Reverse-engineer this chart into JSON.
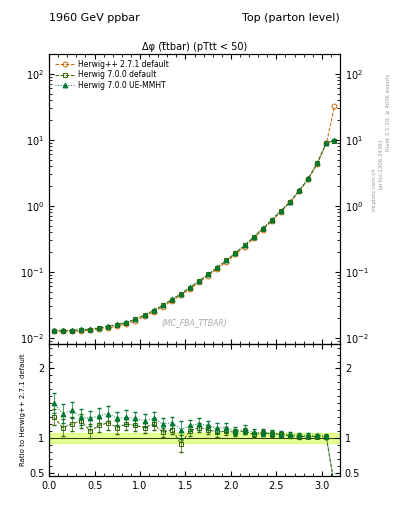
{
  "title_left": "1960 GeV ppbar",
  "title_right": "Top (parton level)",
  "plot_title": "Δφ (t̅tbar) (pTtt < 50)",
  "watermark": "(MC_FBA_TTBAR)",
  "right_label_top": "Rivet 3.1.10; ≥ 400k events",
  "right_label_mid": "[arXiv:1306.3436]",
  "right_label_bot": "mcplots.cern.ch",
  "ylabel_ratio": "Ratio to Herwig++ 2.7.1 default",
  "series": [
    {
      "label": "Herwig++ 2.7.1 default",
      "color": "#cc6600",
      "marker": "o",
      "fillstyle": "none",
      "linestyle": "--"
    },
    {
      "label": "Herwig 7.0.0 default",
      "color": "#336600",
      "marker": "s",
      "fillstyle": "none",
      "linestyle": "--"
    },
    {
      "label": "Herwig 7.0.0 UE-MMHT",
      "color": "#007733",
      "marker": "^",
      "fillstyle": "full",
      "linestyle": ":"
    }
  ],
  "x_values": [
    0.05,
    0.15,
    0.25,
    0.35,
    0.45,
    0.55,
    0.65,
    0.75,
    0.85,
    0.95,
    1.05,
    1.15,
    1.25,
    1.35,
    1.45,
    1.55,
    1.65,
    1.75,
    1.85,
    1.95,
    2.05,
    2.15,
    2.25,
    2.35,
    2.45,
    2.55,
    2.65,
    2.75,
    2.85,
    2.95,
    3.05,
    3.14
  ],
  "y_main_s0": [
    0.0125,
    0.0125,
    0.0125,
    0.0128,
    0.013,
    0.0135,
    0.014,
    0.015,
    0.0162,
    0.018,
    0.021,
    0.0245,
    0.0295,
    0.036,
    0.044,
    0.055,
    0.069,
    0.087,
    0.11,
    0.142,
    0.183,
    0.24,
    0.32,
    0.43,
    0.585,
    0.81,
    1.12,
    1.65,
    2.5,
    4.3,
    8.8,
    32.0
  ],
  "y_main_s1": [
    0.0128,
    0.0128,
    0.0128,
    0.0132,
    0.0133,
    0.014,
    0.0148,
    0.0158,
    0.017,
    0.019,
    0.0222,
    0.0258,
    0.031,
    0.0378,
    0.0462,
    0.0576,
    0.0722,
    0.091,
    0.115,
    0.148,
    0.19,
    0.25,
    0.336,
    0.448,
    0.607,
    0.834,
    1.14,
    1.68,
    2.56,
    4.38,
    8.96,
    9.6
  ],
  "y_main_s2": [
    0.013,
    0.013,
    0.013,
    0.0134,
    0.0136,
    0.0142,
    0.015,
    0.016,
    0.0172,
    0.0192,
    0.0225,
    0.0262,
    0.0314,
    0.0383,
    0.0468,
    0.0583,
    0.0731,
    0.092,
    0.117,
    0.15,
    0.193,
    0.253,
    0.34,
    0.453,
    0.614,
    0.843,
    1.15,
    1.7,
    2.59,
    4.43,
    9.05,
    10.0
  ],
  "y_ratio_s1": [
    1.02,
    1.02,
    1.02,
    1.03,
    1.02,
    1.04,
    1.06,
    1.05,
    1.05,
    1.06,
    1.06,
    1.05,
    1.05,
    1.05,
    1.05,
    1.05,
    1.05,
    1.04,
    1.05,
    1.04,
    1.04,
    1.04,
    1.05,
    1.04,
    1.04,
    1.03,
    1.02,
    1.02,
    1.02,
    1.02,
    1.02,
    0.3
  ],
  "y_ratio_s2": [
    1.04,
    1.04,
    1.04,
    1.05,
    1.05,
    1.05,
    1.07,
    1.07,
    1.06,
    1.07,
    1.07,
    1.07,
    1.06,
    1.06,
    1.06,
    1.06,
    1.06,
    1.06,
    1.06,
    1.06,
    1.05,
    1.05,
    1.06,
    1.05,
    1.05,
    1.04,
    1.03,
    1.03,
    1.04,
    1.03,
    1.03,
    0.31
  ],
  "y_ratio_s1_scatter": [
    1.3,
    1.15,
    1.2,
    1.25,
    1.1,
    1.18,
    1.22,
    1.15,
    1.2,
    1.18,
    1.15,
    1.2,
    1.08,
    1.12,
    0.92,
    1.1,
    1.15,
    1.12,
    1.08,
    1.1,
    1.08,
    1.1,
    1.05,
    1.07,
    1.06,
    1.05,
    1.03,
    1.02,
    1.02,
    1.02,
    1.01,
    0.3
  ],
  "y_ratio_s2_scatter": [
    1.5,
    1.35,
    1.4,
    1.3,
    1.28,
    1.32,
    1.35,
    1.28,
    1.3,
    1.28,
    1.25,
    1.28,
    1.2,
    1.22,
    1.12,
    1.18,
    1.2,
    1.18,
    1.14,
    1.15,
    1.1,
    1.12,
    1.08,
    1.08,
    1.07,
    1.06,
    1.05,
    1.04,
    1.04,
    1.04,
    1.03,
    0.31
  ],
  "yerr_s1": [
    0.12,
    0.12,
    0.1,
    0.1,
    0.1,
    0.1,
    0.1,
    0.09,
    0.09,
    0.08,
    0.08,
    0.08,
    0.07,
    0.07,
    0.12,
    0.07,
    0.07,
    0.06,
    0.06,
    0.06,
    0.05,
    0.05,
    0.04,
    0.04,
    0.04,
    0.03,
    0.03,
    0.03,
    0.02,
    0.02,
    0.02,
    0.05
  ],
  "yerr_s2": [
    0.14,
    0.14,
    0.12,
    0.12,
    0.11,
    0.11,
    0.11,
    0.1,
    0.1,
    0.09,
    0.09,
    0.09,
    0.08,
    0.08,
    0.13,
    0.08,
    0.08,
    0.07,
    0.07,
    0.07,
    0.06,
    0.06,
    0.05,
    0.05,
    0.04,
    0.04,
    0.03,
    0.03,
    0.03,
    0.02,
    0.02,
    0.05
  ],
  "band_color": "#ccff33",
  "band_alpha": 0.5,
  "ylim_main": [
    0.008,
    200
  ],
  "ylim_ratio": [
    0.45,
    2.35
  ],
  "xlim": [
    0.0,
    3.2
  ],
  "ratio_yticks": [
    0.5,
    1.0,
    2.0
  ],
  "ratio_yticklabels": [
    "0.5",
    "1",
    "2"
  ]
}
